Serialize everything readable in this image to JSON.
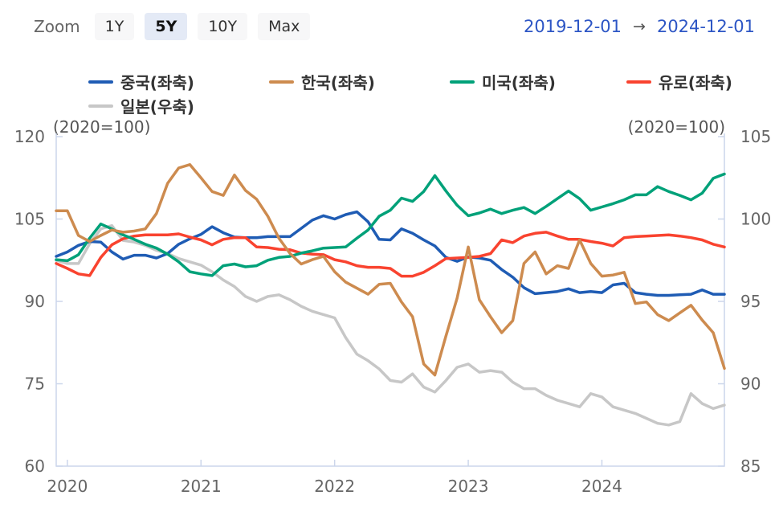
{
  "toolbar": {
    "zoom_label": "Zoom",
    "buttons": [
      {
        "label": "1Y",
        "selected": false
      },
      {
        "label": "5Y",
        "selected": true
      },
      {
        "label": "10Y",
        "selected": false
      },
      {
        "label": "Max",
        "selected": false
      }
    ],
    "date_from": "2019-12-01",
    "date_arrow": "→",
    "date_to": "2024-12-01"
  },
  "chart_data": {
    "type": "line",
    "frequency": "monthly",
    "x_start": "2019-12",
    "x_end": "2024-12",
    "left_axis_label": "(2020=100)",
    "right_axis_label": "(2020=100)",
    "left_ticks": [
      120,
      105,
      90,
      75,
      60
    ],
    "right_ticks": [
      105,
      100,
      95,
      90,
      85
    ],
    "ylim_left": [
      60,
      120
    ],
    "ylim_right": [
      85,
      105
    ],
    "x_tick_labels": [
      "2020",
      "2021",
      "2022",
      "2023",
      "2024"
    ],
    "x_tick_month_index": [
      1,
      13,
      25,
      37,
      49
    ],
    "grid": false,
    "legend_position": "top",
    "colors": {
      "axis_line": "#ccd6eb",
      "tick_label": "#666666",
      "date_link": "#2d56c5",
      "button_selected_bg": "#e4eaf6"
    },
    "series": [
      {
        "name": "중국(좌축)",
        "axis": "left",
        "color": "#1f5cb4",
        "values": [
          98.2,
          99.0,
          100.2,
          100.9,
          100.8,
          99.0,
          97.7,
          98.4,
          98.4,
          97.9,
          98.7,
          100.4,
          101.4,
          102.2,
          103.6,
          102.5,
          101.7,
          101.6,
          101.6,
          101.8,
          101.8,
          101.8,
          103.3,
          104.8,
          105.6,
          105.0,
          105.8,
          106.3,
          104.5,
          101.3,
          101.2,
          103.2,
          102.4,
          101.2,
          100.1,
          98.0,
          97.3,
          98.1,
          97.9,
          97.5,
          95.8,
          94.4,
          92.5,
          91.4,
          91.6,
          91.8,
          92.3,
          91.6,
          91.8,
          91.6,
          93.0,
          93.3,
          91.6,
          91.3,
          91.1,
          91.1,
          91.2,
          91.3,
          92.1,
          91.3,
          91.3
        ]
      },
      {
        "name": "한국(좌축)",
        "axis": "left",
        "color": "#cd8b4f",
        "values": [
          106.5,
          106.5,
          102.0,
          100.9,
          102.0,
          103.0,
          102.6,
          102.8,
          103.2,
          106.0,
          111.5,
          114.3,
          114.9,
          112.5,
          110.0,
          109.3,
          113.0,
          110.2,
          108.6,
          105.5,
          101.5,
          98.7,
          96.8,
          97.6,
          98.2,
          95.4,
          93.5,
          92.4,
          91.3,
          93.1,
          93.3,
          89.9,
          87.2,
          78.6,
          76.6,
          83.7,
          90.6,
          99.9,
          90.3,
          87.2,
          84.3,
          86.5,
          96.9,
          99.0,
          95.0,
          96.5,
          96.0,
          101.2,
          96.9,
          94.6,
          94.8,
          95.3,
          89.6,
          89.9,
          87.6,
          86.5,
          87.9,
          89.3,
          86.6,
          84.3,
          77.8
        ]
      },
      {
        "name": "미국(좌축)",
        "axis": "left",
        "color": "#00a179",
        "values": [
          97.6,
          97.4,
          98.5,
          101.5,
          104.1,
          103.2,
          102.1,
          101.3,
          100.4,
          99.7,
          98.6,
          97.2,
          95.4,
          95.0,
          94.7,
          96.5,
          96.8,
          96.3,
          96.5,
          97.5,
          98.0,
          98.2,
          98.8,
          99.2,
          99.7,
          99.8,
          99.9,
          101.5,
          103.0,
          105.5,
          106.6,
          108.8,
          108.2,
          110.0,
          112.9,
          110.1,
          107.5,
          105.6,
          106.1,
          106.8,
          106.0,
          106.6,
          107.1,
          106.0,
          107.3,
          108.7,
          110.1,
          108.7,
          106.6,
          107.2,
          107.8,
          108.5,
          109.4,
          109.4,
          110.9,
          110.0,
          109.3,
          108.5,
          109.7,
          112.4,
          113.2
        ]
      },
      {
        "name": "유로(좌축)",
        "axis": "left",
        "color": "#f9432f",
        "values": [
          96.9,
          96.0,
          95.0,
          94.7,
          98.0,
          100.3,
          101.4,
          101.9,
          102.1,
          102.1,
          102.1,
          102.3,
          101.7,
          101.2,
          100.3,
          101.3,
          101.6,
          101.6,
          99.9,
          99.8,
          99.5,
          99.4,
          98.8,
          98.6,
          98.5,
          97.6,
          97.2,
          96.5,
          96.2,
          96.2,
          96.0,
          94.6,
          94.6,
          95.3,
          96.5,
          97.8,
          97.9,
          98.0,
          98.2,
          98.7,
          101.2,
          100.7,
          101.9,
          102.4,
          102.6,
          101.9,
          101.3,
          101.3,
          100.9,
          100.6,
          100.1,
          101.6,
          101.8,
          101.9,
          102.0,
          102.1,
          101.9,
          101.6,
          101.2,
          100.4,
          99.9
        ]
      },
      {
        "name": "일본(우축)",
        "axis": "right",
        "color": "#c7c7c7",
        "values": [
          97.5,
          97.3,
          97.3,
          98.5,
          99.4,
          99.6,
          98.7,
          98.6,
          98.4,
          98.1,
          97.9,
          97.6,
          97.4,
          97.2,
          96.8,
          96.3,
          95.9,
          95.3,
          95.0,
          95.3,
          95.4,
          95.1,
          94.7,
          94.4,
          94.2,
          94.0,
          92.8,
          91.8,
          91.4,
          90.9,
          90.2,
          90.1,
          90.6,
          89.8,
          89.5,
          90.2,
          91.0,
          91.2,
          90.7,
          90.8,
          90.7,
          90.1,
          89.7,
          89.7,
          89.3,
          89.0,
          88.8,
          88.6,
          89.4,
          89.2,
          88.6,
          88.4,
          88.2,
          87.9,
          87.6,
          87.5,
          87.7,
          89.4,
          88.8,
          88.5,
          88.7
        ]
      }
    ],
    "z_order": [
      4,
      0,
      3,
      2,
      1
    ]
  }
}
